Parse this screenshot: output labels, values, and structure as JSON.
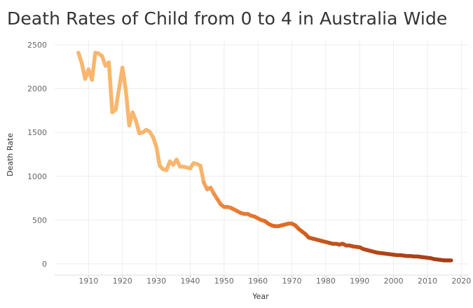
{
  "chart_data": {
    "type": "line",
    "title": "Death Rates of Child from 0 to 4 in Australia Wide",
    "xlabel": "Year",
    "ylabel": "Death Rate",
    "xlim": [
      1900,
      2022
    ],
    "ylim": [
      0,
      2550
    ],
    "xticks": [
      1910,
      1920,
      1930,
      1940,
      1950,
      1960,
      1970,
      1980,
      1990,
      2000,
      2010,
      2020
    ],
    "yticks": [
      0,
      500,
      1000,
      1500,
      2000,
      2500
    ],
    "grid": true,
    "legend": "none",
    "color_scale": {
      "low": "#a63c16",
      "mid": "#e06a22",
      "high": "#f8b66e"
    },
    "series": [
      {
        "x": [
          1907,
          1908,
          1909,
          1910,
          1911,
          1912,
          1913,
          1914,
          1915,
          1916,
          1917,
          1918,
          1919,
          1920,
          1921,
          1922,
          1923,
          1924,
          1925,
          1926,
          1927,
          1928,
          1929,
          1930,
          1931,
          1932,
          1933,
          1934,
          1935,
          1936,
          1937,
          1938,
          1939,
          1940,
          1941,
          1942,
          1943,
          1944,
          1945,
          1946,
          1947,
          1948,
          1949,
          1950,
          1951,
          1952,
          1953,
          1954,
          1955,
          1956,
          1957,
          1958,
          1959,
          1960,
          1961,
          1962,
          1963,
          1964,
          1965,
          1966,
          1967,
          1968,
          1969,
          1970,
          1971,
          1972,
          1973,
          1974,
          1975,
          1976,
          1977,
          1978,
          1979,
          1980,
          1981,
          1982,
          1983,
          1984,
          1985,
          1986,
          1987,
          1988,
          1989,
          1990,
          1991,
          1992,
          1993,
          1994,
          1995,
          1996,
          1997,
          1998,
          1999,
          2000,
          2001,
          2002,
          2003,
          2004,
          2005,
          2006,
          2007,
          2008,
          2009,
          2010,
          2011,
          2012,
          2013,
          2014,
          2015,
          2016,
          2017
        ],
        "y": [
          2410,
          2290,
          2110,
          2220,
          2100,
          2410,
          2400,
          2370,
          2260,
          2300,
          1730,
          1760,
          2000,
          2240,
          1980,
          1580,
          1730,
          1630,
          1490,
          1500,
          1530,
          1510,
          1450,
          1340,
          1120,
          1080,
          1070,
          1170,
          1130,
          1190,
          1110,
          1110,
          1100,
          1090,
          1150,
          1140,
          1120,
          930,
          850,
          870,
          800,
          740,
          680,
          650,
          650,
          640,
          620,
          600,
          580,
          570,
          570,
          550,
          540,
          520,
          500,
          490,
          460,
          440,
          430,
          430,
          440,
          450,
          460,
          460,
          440,
          400,
          370,
          340,
          300,
          290,
          280,
          270,
          260,
          250,
          240,
          230,
          230,
          220,
          230,
          210,
          210,
          200,
          195,
          190,
          170,
          160,
          150,
          140,
          130,
          125,
          120,
          115,
          110,
          105,
          100,
          100,
          95,
          90,
          90,
          85,
          85,
          80,
          75,
          70,
          65,
          55,
          50,
          45,
          40,
          40,
          40
        ]
      }
    ]
  }
}
